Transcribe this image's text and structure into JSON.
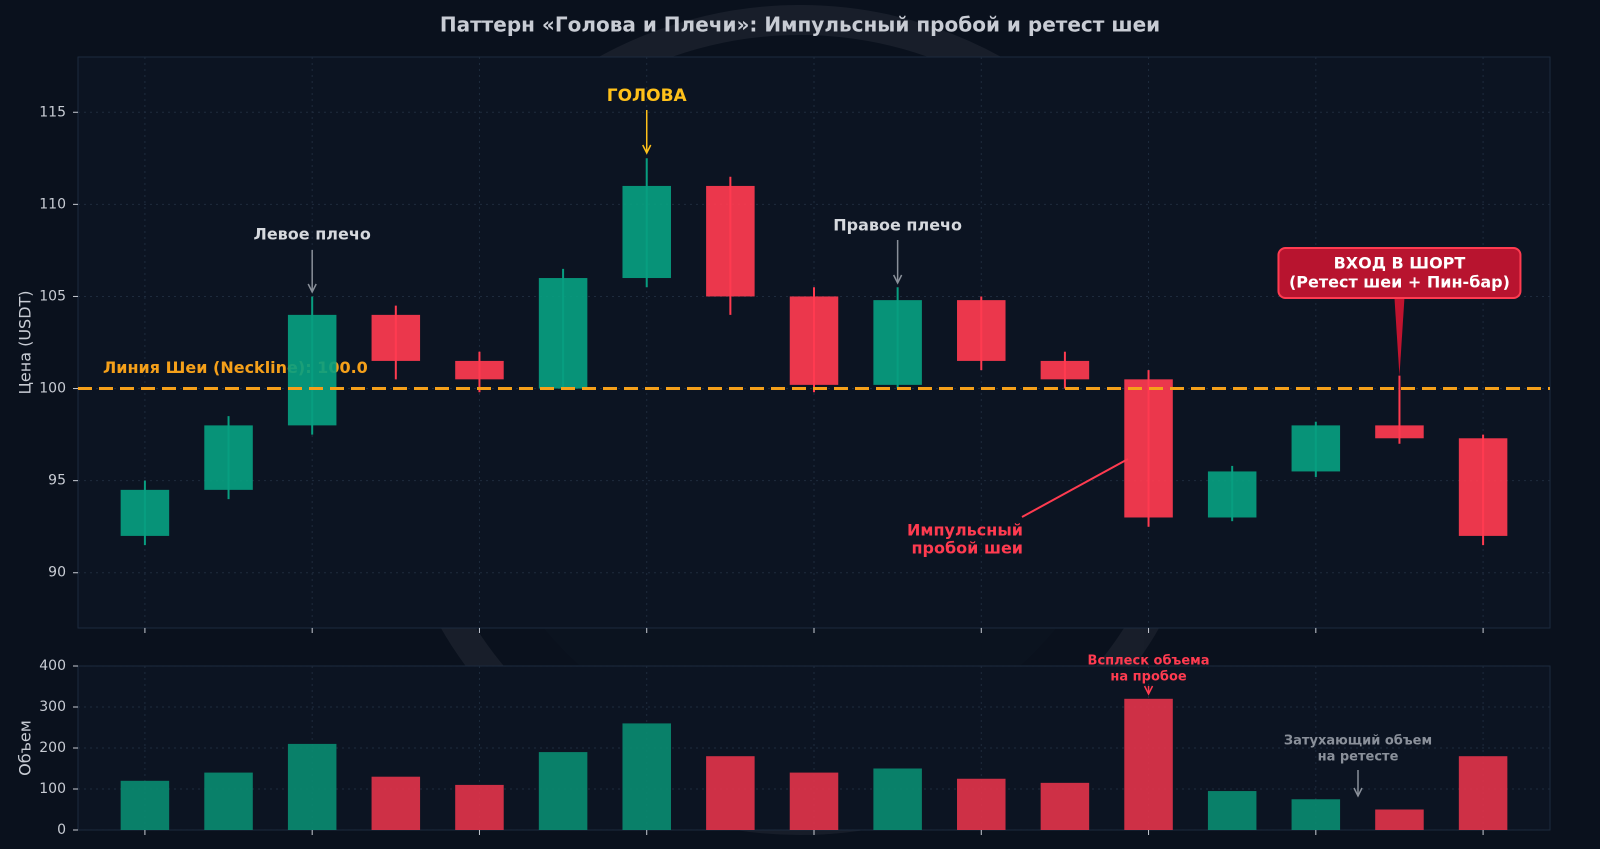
{
  "chart_data": [
    {
      "type": "candlestick",
      "title": "Паттерн «Голова и Плечи»: Импульсный пробой и ретест шеи",
      "ylabel": "Цена (USDT)",
      "up_color": "#089e80",
      "down_color": "#ff3b50",
      "x": [
        0,
        1,
        2,
        3,
        4,
        5,
        6,
        7,
        8,
        9,
        10,
        11,
        12,
        13,
        14,
        15,
        16
      ],
      "open": [
        92,
        94.5,
        98,
        104,
        101.5,
        100,
        106,
        111,
        105,
        100.2,
        104.8,
        101.5,
        100.5,
        93,
        95.5,
        98,
        97.3
      ],
      "high": [
        95,
        98.5,
        105,
        104.5,
        102,
        106.5,
        112.5,
        111.5,
        105.5,
        105.5,
        105,
        102,
        101,
        95.8,
        98.2,
        100.7,
        97.5
      ],
      "low": [
        91.5,
        94,
        97.5,
        100.5,
        99.8,
        100,
        105.5,
        104,
        99.8,
        100,
        101,
        100,
        92.5,
        92.8,
        95.2,
        97,
        91.5
      ],
      "close": [
        94.5,
        98,
        104,
        101.5,
        100.5,
        106,
        111,
        105,
        100.2,
        104.8,
        101.5,
        100.5,
        93,
        95.5,
        98,
        97.3,
        92
      ],
      "xlim": [
        -0.8,
        16.8
      ],
      "xticks": [
        0,
        2,
        4,
        6,
        8,
        10,
        12,
        14,
        16
      ],
      "ylim": [
        87,
        118
      ],
      "yticks": [
        90,
        95,
        100,
        105,
        110,
        115
      ],
      "grid": true,
      "neckline": 100,
      "neckline_label": "Линия Шеи (Neckline): 100.0",
      "neckline_color": "#f5a01a",
      "annotations": [
        {
          "lines": [
            "ГОЛОВА"
          ],
          "color": "#ffc11a"
        },
        {
          "lines": [
            "Левое плечо"
          ],
          "color": "#d6d9de"
        },
        {
          "lines": [
            "Правое плечо"
          ],
          "color": "#d6d9de"
        },
        {
          "lines": [
            "Импульсный",
            "пробой шеи"
          ],
          "color": "#ff3b50"
        },
        {
          "lines": [
            "ВХОД В ШОРТ",
            "(Ретест шеи + Пин-бар)"
          ],
          "color": "#ffffff"
        }
      ]
    },
    {
      "type": "bar",
      "ylabel": "Объем",
      "up_color": "#0a8a70",
      "down_color": "#e0334a",
      "x": [
        0,
        1,
        2,
        3,
        4,
        5,
        6,
        7,
        8,
        9,
        10,
        11,
        12,
        13,
        14,
        15,
        16
      ],
      "values": [
        120,
        140,
        210,
        130,
        110,
        190,
        260,
        180,
        140,
        150,
        125,
        115,
        320,
        95,
        75,
        50,
        180
      ],
      "xlim": [
        -0.8,
        16.8
      ],
      "xticks": [
        0,
        2,
        4,
        6,
        8,
        10,
        12,
        14,
        16
      ],
      "ylim": [
        0,
        400
      ],
      "yticks": [
        0,
        100,
        200,
        300,
        400
      ],
      "grid": true,
      "annotations": [
        {
          "lines": [
            "Всплеск объема",
            "на пробое"
          ],
          "color": "#ff3b50"
        },
        {
          "lines": [
            "Затухающий объем",
            "на ретесте"
          ],
          "color": "#8a909a"
        }
      ]
    }
  ]
}
